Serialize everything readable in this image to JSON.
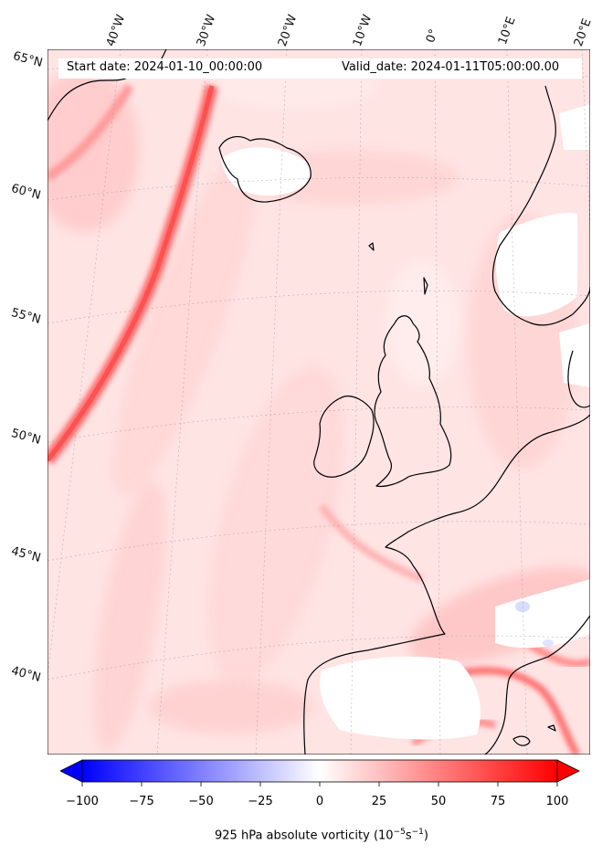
{
  "header": {
    "start_date": "Start date: 2024-01-10_00:00:00",
    "valid_date": "Valid_date: 2024-01-11T05:00:00.00"
  },
  "map": {
    "lon_labels": [
      "40°W",
      "30°W",
      "20°W",
      "10°W",
      "0°",
      "10°E",
      "20°E"
    ],
    "lat_labels": [
      "65°N",
      "60°N",
      "55°N",
      "50°N",
      "45°N",
      "40°N"
    ]
  },
  "colorbar": {
    "ticks": [
      "−100",
      "−75",
      "−50",
      "−25",
      "0",
      "25",
      "50",
      "75",
      "100"
    ],
    "label_prefix": "925 hPa absolute vorticity (10",
    "label_exp1": "−5",
    "label_mid": "s",
    "label_exp2": "−1",
    "label_suffix": ")",
    "min_color": "#0000ff",
    "mid_color": "#ffffff",
    "max_color": "#ff0000"
  }
}
